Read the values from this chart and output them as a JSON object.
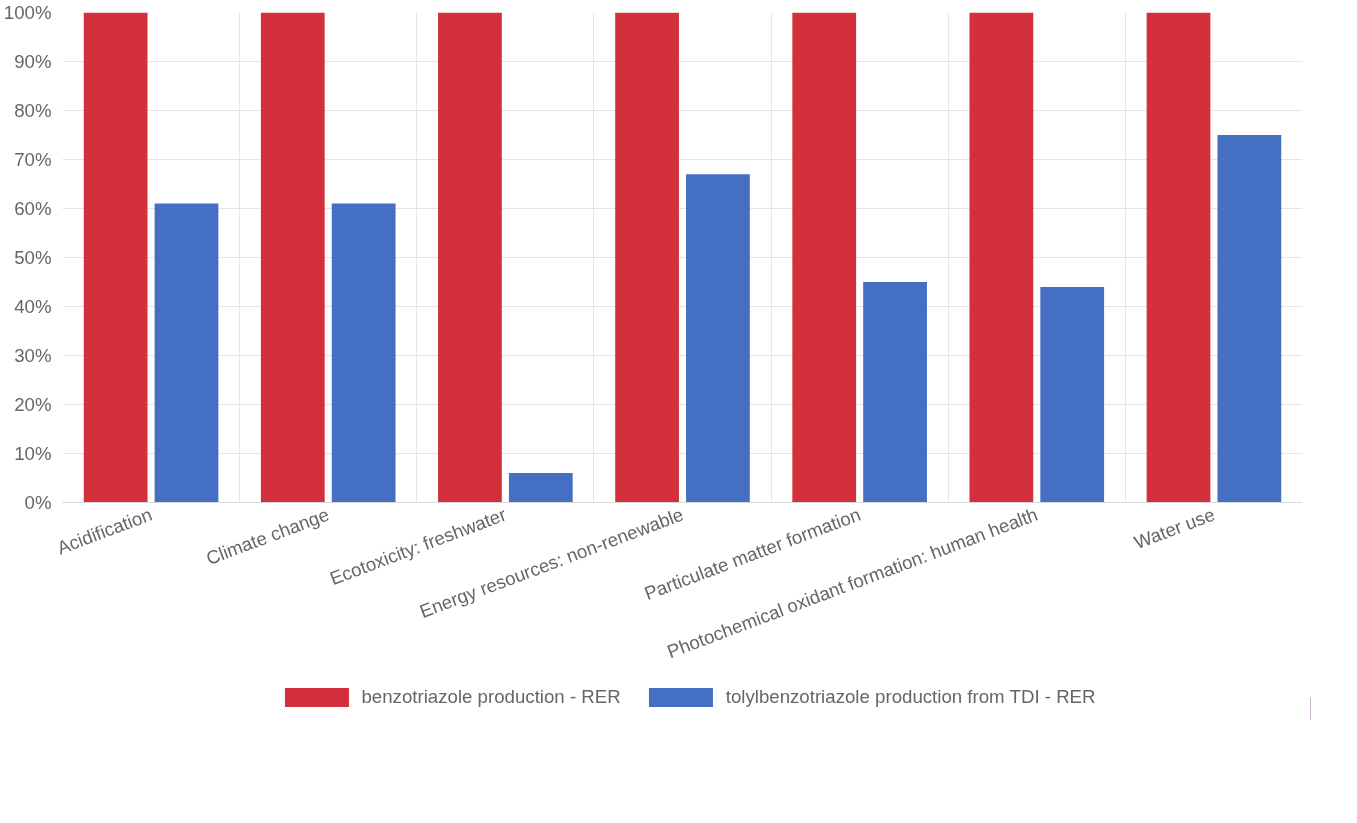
{
  "chart_data": {
    "type": "bar",
    "categories": [
      "Acidification",
      "Climate change",
      "Ecotoxicity: freshwater",
      "Energy resources: non-renewable",
      "Particulate matter formation",
      "Photochemical oxidant formation: human health",
      "Water use"
    ],
    "series": [
      {
        "name": "benzotriazole production - RER",
        "color": "#d3303c",
        "values": [
          100,
          100,
          100,
          100,
          100,
          100,
          100
        ]
      },
      {
        "name": "tolylbenzotriazole production from TDI - RER",
        "color": "#456fc2",
        "values": [
          61,
          61,
          6,
          67,
          45,
          44,
          75
        ]
      }
    ],
    "ylim": [
      0,
      100
    ],
    "yticks": [
      {
        "value": 0,
        "label": "0%"
      },
      {
        "value": 10,
        "label": "10%"
      },
      {
        "value": 20,
        "label": "20%"
      },
      {
        "value": 30,
        "label": "30%"
      },
      {
        "value": 40,
        "label": "40%"
      },
      {
        "value": 50,
        "label": "50%"
      },
      {
        "value": 60,
        "label": "60%"
      },
      {
        "value": 70,
        "label": "70%"
      },
      {
        "value": 80,
        "label": "80%"
      },
      {
        "value": 90,
        "label": "90%"
      },
      {
        "value": 100,
        "label": "100%"
      }
    ],
    "grid": true,
    "legend": "bottom"
  }
}
